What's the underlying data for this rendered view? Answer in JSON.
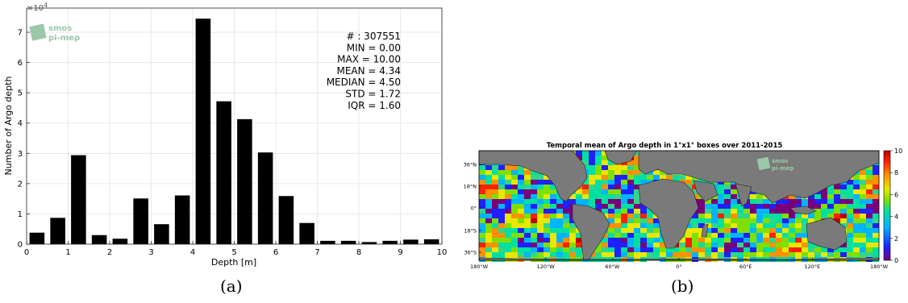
{
  "chart_data": [
    {
      "type": "bar",
      "xlabel": "Depth [m]",
      "ylabel": "Number of Argo depth",
      "y_multiplier": "×10^4",
      "y_multiplier_base": "×10",
      "y_multiplier_exp": "4",
      "xlim": [
        0,
        10
      ],
      "ylim": [
        0,
        7.8
      ],
      "x_ticks": [
        0,
        1,
        2,
        3,
        4,
        5,
        6,
        7,
        8,
        9,
        10
      ],
      "y_ticks": [
        0,
        1,
        2,
        3,
        4,
        5,
        6,
        7
      ],
      "grid": true,
      "x": [
        0.25,
        0.75,
        1.25,
        1.75,
        2.25,
        2.75,
        3.25,
        3.75,
        4.25,
        4.75,
        5.25,
        5.75,
        6.25,
        6.75,
        7.25,
        7.75,
        8.25,
        8.75,
        9.25,
        9.75
      ],
      "values": [
        0.38,
        0.87,
        2.94,
        0.3,
        0.18,
        1.51,
        0.66,
        1.61,
        7.45,
        4.72,
        4.13,
        3.03,
        1.59,
        0.7,
        0.11,
        0.11,
        0.07,
        0.11,
        0.15,
        0.16
      ],
      "stats": [
        "# : 307551",
        "MIN = 0.00",
        "MAX =  10.00",
        "MEAN = 4.34",
        "MEDIAN = 4.50",
        "STD = 1.72",
        "IQR = 1.60"
      ],
      "logo": [
        "smos",
        "pi-mep"
      ],
      "caption": "(a)"
    },
    {
      "type": "heatmap",
      "title": "Temporal mean of Argo depth in 1°x1° boxes over 2011-2015",
      "x_tick_labels": [
        "180°W",
        "120°W",
        "60°W",
        "0°",
        "60°E",
        "120°E",
        "180°W"
      ],
      "y_tick_labels": [
        "36°N",
        "18°N",
        "0°",
        "18°S",
        "36°S"
      ],
      "colorbar_ticks": [
        0,
        2,
        4,
        6,
        8,
        10
      ],
      "colorbar_range": [
        0,
        10
      ],
      "colormap": [
        "#7a007a",
        "#2020ff",
        "#00b4ff",
        "#00e0a0",
        "#7fe000",
        "#e8e800",
        "#ff9000",
        "#ff2000",
        "#c00000"
      ],
      "land_color": "#7a7a7a",
      "logo": [
        "smos",
        "pi-mep"
      ],
      "caption": "(b)"
    }
  ]
}
